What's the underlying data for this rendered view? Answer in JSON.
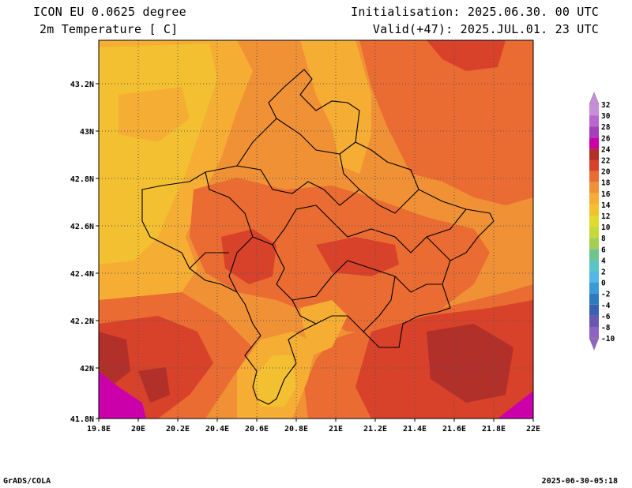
{
  "header": {
    "model": "ICON EU 0.0625 degree",
    "variable": "2m Temperature [ C]",
    "init": "Initialisation: 2025.06.30. 00 UTC",
    "valid": "Valid(+47): 2025.JUL.01. 23 UTC"
  },
  "map": {
    "lon_labels": [
      "19.8E",
      "20E",
      "20.2E",
      "20.4E",
      "20.6E",
      "20.8E",
      "21E",
      "21.2E",
      "21.4E",
      "21.6E",
      "21.8E",
      "22E"
    ],
    "lat_labels": [
      "43.2N",
      "43N",
      "42.8N",
      "42.6N",
      "42.4N",
      "42.2N",
      "42N",
      "41.8N"
    ],
    "gridlines": true,
    "fill_colors": {
      "below_14": "#f2c030",
      "t14_16": "#f5ae33",
      "t16_18": "#f09136",
      "t18_20": "#ea6c32",
      "t20_22": "#d8412a",
      "t22_24": "#b2302a",
      "t24_26": "#cc00aa"
    }
  },
  "colorbar": {
    "labels": [
      "32",
      "30",
      "28",
      "26",
      "24",
      "22",
      "20",
      "18",
      "16",
      "14",
      "12",
      "10",
      "8",
      "6",
      "4",
      "2",
      "0",
      "-2",
      "-4",
      "-6",
      "-8",
      "-10"
    ],
    "colors": [
      "#c98ed8",
      "#b868cc",
      "#a540b8",
      "#cc00aa",
      "#b2302a",
      "#d8412a",
      "#ea6c32",
      "#f09136",
      "#f5ae33",
      "#f2c030",
      "#e0d92e",
      "#c6d83a",
      "#a6cf52",
      "#70c48c",
      "#5cc4c4",
      "#56b6e4",
      "#3a9ad6",
      "#2c7bc0",
      "#3a60b0",
      "#6a58b0",
      "#8e64c0"
    ]
  },
  "footer": {
    "left": "GrADS/COLA",
    "right": "2025-06-30-05:18"
  }
}
